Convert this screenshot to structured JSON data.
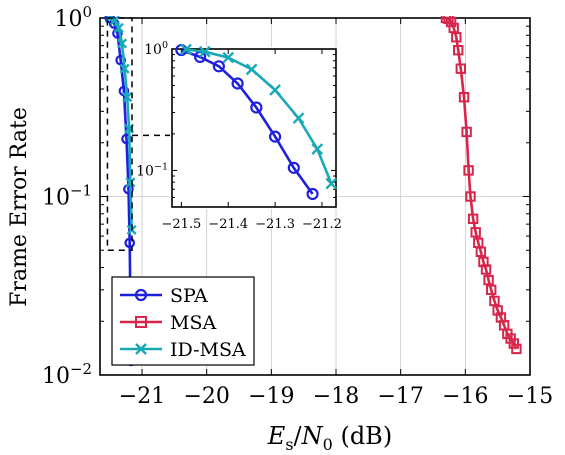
{
  "chart_data": [
    {
      "type": "line",
      "role": "main",
      "xlabel": "E_s/N_0 (dB)",
      "ylabel": "Frame Error Rate",
      "xlim": [
        -21.65,
        -15
      ],
      "ylim": [
        0.01,
        1
      ],
      "yscale": "log",
      "grid": true,
      "legend_position": "bottom-left",
      "x_ticks": [
        -21,
        -20,
        -19,
        -18,
        -17,
        -16,
        -15
      ],
      "y_ticks": [
        {
          "value": 1,
          "base": "10",
          "exp": "0"
        },
        {
          "value": 0.1,
          "base": "10",
          "exp": "−1"
        },
        {
          "value": 0.01,
          "base": "10",
          "exp": "−2"
        }
      ],
      "series": [
        {
          "name": "SPA",
          "color": "#1f1fe0",
          "marker": "circle",
          "x": [
            -21.5,
            -21.43,
            -21.38,
            -21.33,
            -21.28,
            -21.24,
            -21.21,
            -21.19,
            -21.17
          ],
          "y": [
            1.0,
            0.93,
            0.82,
            0.58,
            0.39,
            0.21,
            0.11,
            0.055,
            0.012
          ]
        },
        {
          "name": "MSA",
          "color": "#d7264a",
          "marker": "square",
          "x": [
            -16.3,
            -16.26,
            -16.22,
            -16.18,
            -16.14,
            -16.11,
            -16.07,
            -16.02,
            -15.98,
            -15.95,
            -15.92,
            -15.88,
            -15.84,
            -15.8,
            -15.76,
            -15.72,
            -15.68,
            -15.64,
            -15.6,
            -15.55,
            -15.5,
            -15.45,
            -15.4,
            -15.35,
            -15.3,
            -15.25,
            -15.21
          ],
          "y": [
            1.0,
            0.99,
            0.95,
            0.88,
            0.78,
            0.66,
            0.52,
            0.36,
            0.23,
            0.14,
            0.1,
            0.075,
            0.063,
            0.055,
            0.049,
            0.043,
            0.039,
            0.034,
            0.03,
            0.026,
            0.023,
            0.021,
            0.019,
            0.017,
            0.016,
            0.015,
            0.014
          ]
        },
        {
          "name": "ID-MSA",
          "color": "#17a9b6",
          "marker": "x",
          "x": [
            -21.5,
            -21.42,
            -21.36,
            -21.31,
            -21.27,
            -21.23,
            -21.2,
            -21.18,
            -21.16
          ],
          "y": [
            1.0,
            0.97,
            0.88,
            0.72,
            0.52,
            0.36,
            0.24,
            0.12,
            0.065
          ]
        }
      ]
    },
    {
      "type": "line",
      "role": "inset",
      "xlim": [
        -21.52,
        -21.17
      ],
      "ylim": [
        0.05,
        1
      ],
      "yscale": "log",
      "grid": false,
      "x_ticks": [
        -21.5,
        -21.4,
        -21.3,
        -21.2
      ],
      "x_tick_labels": [
        "−21.5",
        "−21.4",
        "−21.3",
        "−21.2"
      ],
      "y_ticks": [
        {
          "value": 1,
          "base": "10",
          "exp": "0"
        },
        {
          "value": 0.1,
          "base": "10",
          "exp": "−1"
        }
      ],
      "series": [
        {
          "name": "SPA",
          "color": "#1f1fe0",
          "marker": "circle",
          "x": [
            -21.5,
            -21.46,
            -21.42,
            -21.38,
            -21.34,
            -21.3,
            -21.26,
            -21.22
          ],
          "y": [
            0.98,
            0.86,
            0.72,
            0.52,
            0.33,
            0.19,
            0.105,
            0.064
          ]
        },
        {
          "name": "ID-MSA",
          "color": "#17a9b6",
          "marker": "x",
          "x": [
            -21.49,
            -21.45,
            -21.4,
            -21.35,
            -21.3,
            -21.25,
            -21.21,
            -21.18
          ],
          "y": [
            0.99,
            0.95,
            0.85,
            0.68,
            0.46,
            0.27,
            0.15,
            0.078
          ]
        }
      ]
    }
  ]
}
